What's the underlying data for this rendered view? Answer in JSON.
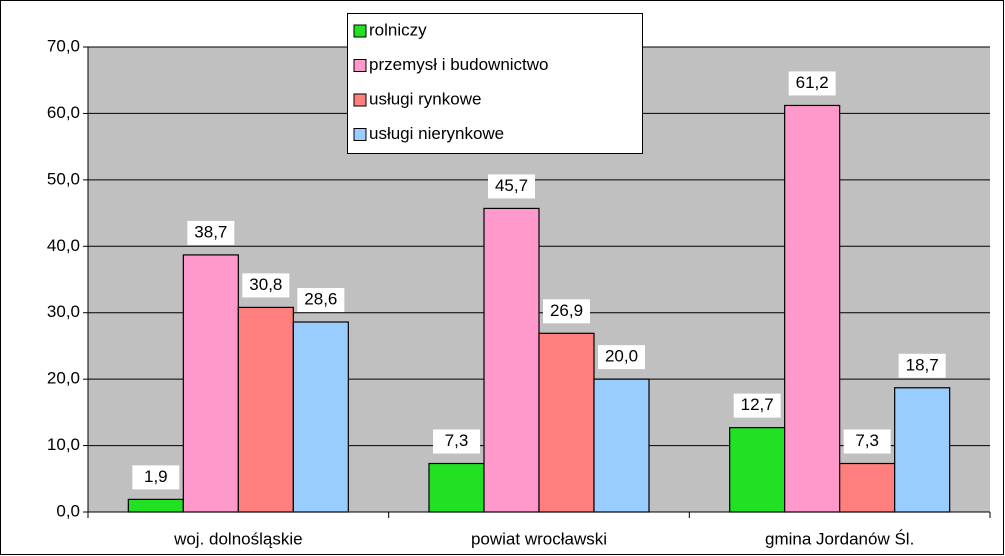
{
  "chart_data": {
    "type": "bar",
    "categories": [
      "woj. dolnośląskie",
      "powiat wrocławski",
      "gmina Jordanów Śl."
    ],
    "series": [
      {
        "name": "rolniczy",
        "color": "#22e022",
        "values": [
          1.9,
          7.3,
          12.7
        ],
        "value_labels": [
          "1,9",
          "7,3",
          "12,7"
        ]
      },
      {
        "name": "przemysł i budownictwo",
        "color": "#ff99cc",
        "values": [
          38.7,
          45.7,
          61.2
        ],
        "value_labels": [
          "38,7",
          "45,7",
          "61,2"
        ]
      },
      {
        "name": "usługi rynkowe",
        "color": "#ff7f7f",
        "values": [
          30.8,
          26.9,
          7.3
        ],
        "value_labels": [
          "30,8",
          "26,9",
          "7,3"
        ]
      },
      {
        "name": "usługi nierynkowe",
        "color": "#99ccff",
        "values": [
          28.6,
          20.0,
          18.7
        ],
        "value_labels": [
          "28,6",
          "20,0",
          "18,7"
        ]
      }
    ],
    "ylim": [
      0,
      70
    ],
    "yticks": [
      {
        "value": 0,
        "label": "0,0"
      },
      {
        "value": 10,
        "label": "10,0"
      },
      {
        "value": 20,
        "label": "20,0"
      },
      {
        "value": 30,
        "label": "30,0"
      },
      {
        "value": 40,
        "label": "40,0"
      },
      {
        "value": 50,
        "label": "50,0"
      },
      {
        "value": 60,
        "label": "60,0"
      },
      {
        "value": 70,
        "label": "70,0"
      }
    ],
    "grid": true,
    "legend": "top"
  }
}
